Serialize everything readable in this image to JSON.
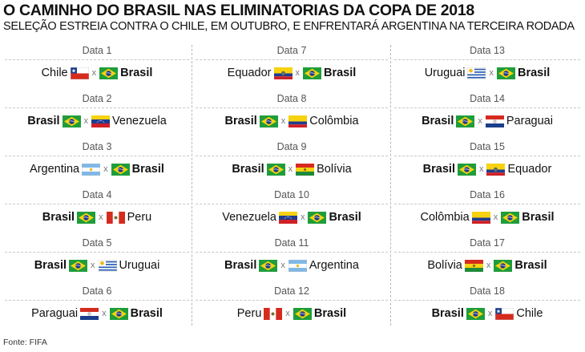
{
  "header": {
    "title": "O CAMINHO DO BRASIL NAS ELIMINATORIAS DA COPA DE 2018",
    "subtitle": "SELEÇÃO ESTREIA CONTRA O CHILE, EM OUTUBRO, E ENFRENTARÁ ARGENTINA NA TERCEIRA RODADA"
  },
  "separator": "x",
  "columns": [
    [
      {
        "date": "Data 1",
        "home": "Chile",
        "away": "Brasil",
        "home_flag": "chile",
        "away_flag": "brasil"
      },
      {
        "date": "Data 2",
        "home": "Brasil",
        "away": "Venezuela",
        "home_flag": "brasil",
        "away_flag": "venezuela"
      },
      {
        "date": "Data 3",
        "home": "Argentina",
        "away": "Brasil",
        "home_flag": "argentina",
        "away_flag": "brasil"
      },
      {
        "date": "Data 4",
        "home": "Brasil",
        "away": "Peru",
        "home_flag": "brasil",
        "away_flag": "peru"
      },
      {
        "date": "Data 5",
        "home": "Brasil",
        "away": "Uruguai",
        "home_flag": "brasil",
        "away_flag": "uruguai"
      },
      {
        "date": "Data 6",
        "home": "Paraguai",
        "away": "Brasil",
        "home_flag": "paraguai",
        "away_flag": "brasil"
      }
    ],
    [
      {
        "date": "Data 7",
        "home": "Equador",
        "away": "Brasil",
        "home_flag": "equador",
        "away_flag": "brasil"
      },
      {
        "date": "Data 8",
        "home": "Brasil",
        "away": "Colômbia",
        "home_flag": "brasil",
        "away_flag": "colombia"
      },
      {
        "date": "Data 9",
        "home": "Brasil",
        "away": "Bolívia",
        "home_flag": "brasil",
        "away_flag": "bolivia"
      },
      {
        "date": "Data 10",
        "home": "Venezuela",
        "away": "Brasil",
        "home_flag": "venezuela",
        "away_flag": "brasil"
      },
      {
        "date": "Data 11",
        "home": "Brasil",
        "away": "Argentina",
        "home_flag": "brasil",
        "away_flag": "argentina"
      },
      {
        "date": "Data 12",
        "home": "Peru",
        "away": "Brasil",
        "home_flag": "peru",
        "away_flag": "brasil"
      }
    ],
    [
      {
        "date": "Data 13",
        "home": "Uruguai",
        "away": "Brasil",
        "home_flag": "uruguai",
        "away_flag": "brasil"
      },
      {
        "date": "Data 14",
        "home": "Brasil",
        "away": "Paraguai",
        "home_flag": "brasil",
        "away_flag": "paraguai"
      },
      {
        "date": "Data 15",
        "home": "Brasil",
        "away": "Equador",
        "home_flag": "brasil",
        "away_flag": "equador"
      },
      {
        "date": "Data 16",
        "home": "Colômbia",
        "away": "Brasil",
        "home_flag": "colombia",
        "away_flag": "brasil"
      },
      {
        "date": "Data 17",
        "home": "Bolívia",
        "away": "Brasil",
        "home_flag": "bolivia",
        "away_flag": "brasil"
      },
      {
        "date": "Data 18",
        "home": "Brasil",
        "away": "Chile",
        "home_flag": "brasil",
        "away_flag": "chile"
      }
    ]
  ],
  "highlight_team": "Brasil",
  "source": "Fonte: FIFA"
}
